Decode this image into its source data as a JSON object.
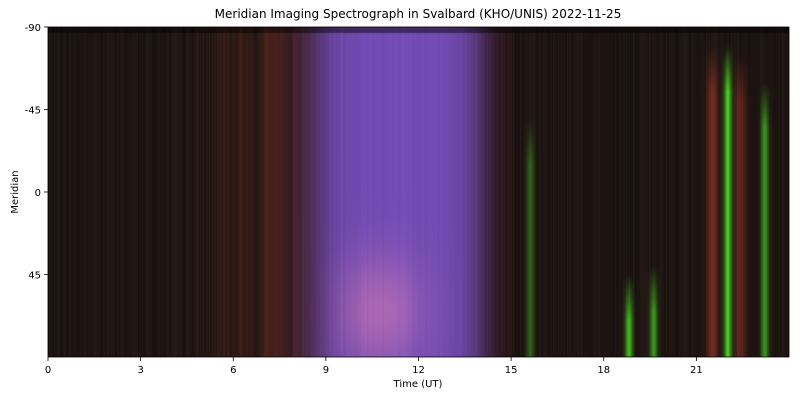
{
  "chart_data": {
    "type": "heatmap",
    "title": "Meridian Imaging Spectrograph in Svalbard (KHO/UNIS) 2022-11-25",
    "xlabel": "Time (UT)",
    "ylabel": "Meridian",
    "xlim": [
      0,
      24
    ],
    "ylim": [
      -90,
      90
    ],
    "y_inverted": true,
    "x_ticks": [
      0,
      3,
      6,
      9,
      12,
      15,
      18,
      21
    ],
    "x_tick_labels": [
      "0",
      "3",
      "6",
      "9",
      "12",
      "15",
      "18",
      "21"
    ],
    "y_ticks": [
      -90,
      -45,
      0,
      45
    ],
    "y_tick_labels": [
      "-90",
      "-45",
      "0",
      "45"
    ],
    "grid": false,
    "colors": {
      "background": "#1e1512",
      "twilight_violet": "#9a70ff",
      "twilight_core": "#dba0ff",
      "aurora_green": "#5fe030",
      "aurora_red": "#8a2a1c"
    },
    "features": [
      {
        "kind": "twilight",
        "t_start": 8.0,
        "t_end": 14.2,
        "t_peak": 10.7
      },
      {
        "kind": "aurora_green",
        "t": 15.6,
        "extent": [
          -40,
          90
        ],
        "strength": 0.4
      },
      {
        "kind": "aurora_green",
        "t": 18.8,
        "extent": [
          45,
          90
        ],
        "strength": 0.9
      },
      {
        "kind": "aurora_green",
        "t": 19.6,
        "extent": [
          40,
          90
        ],
        "strength": 0.7
      },
      {
        "kind": "aurora_green",
        "t": 22.0,
        "extent": [
          -80,
          90
        ],
        "strength": 1.0
      },
      {
        "kind": "aurora_green",
        "t": 23.2,
        "extent": [
          -60,
          90
        ],
        "strength": 0.7
      },
      {
        "kind": "aurora_red",
        "t": 21.5,
        "extent": [
          -80,
          90
        ],
        "strength": 0.7
      },
      {
        "kind": "aurora_red",
        "t": 22.4,
        "extent": [
          -75,
          90
        ],
        "strength": 0.6
      }
    ]
  }
}
